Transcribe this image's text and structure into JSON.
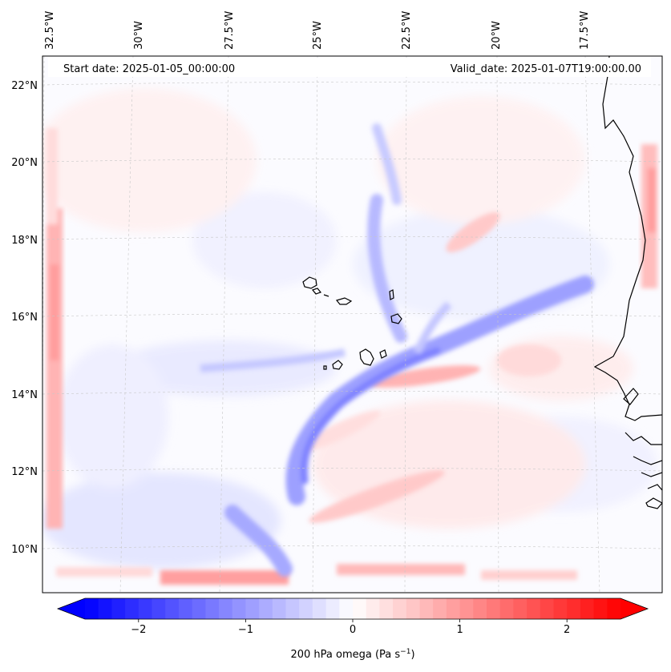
{
  "map": {
    "start_date": "Start date: 2025-01-05_00:00:00",
    "valid_date": "Valid_date: 2025-01-07T19:00:00.00",
    "lon_labels": [
      "32.5°W",
      "30°W",
      "27.5°W",
      "25°W",
      "22.5°W",
      "20°W",
      "17.5°W"
    ],
    "lat_labels": [
      "22°N",
      "20°N",
      "18°N",
      "16°N",
      "14°N",
      "12°N",
      "10°N"
    ],
    "colorbar": {
      "label_prefix": "200 hPa omega (Pa s",
      "label_exp": "−1",
      "label_suffix": ")",
      "ticks": [
        "−2",
        "−1",
        "0",
        "1",
        "2"
      ],
      "tick_values": [
        -2,
        -1,
        0,
        1,
        2
      ],
      "vmin": -2.5,
      "vmax": 2.5,
      "levels": 40,
      "colormap": "bwr",
      "negative_color": "#0000ff",
      "zero_color": "#ffffff",
      "positive_color": "#ff0000"
    },
    "features": {
      "land_outline": "coastline",
      "islands": "Cape Verde Islands"
    }
  }
}
